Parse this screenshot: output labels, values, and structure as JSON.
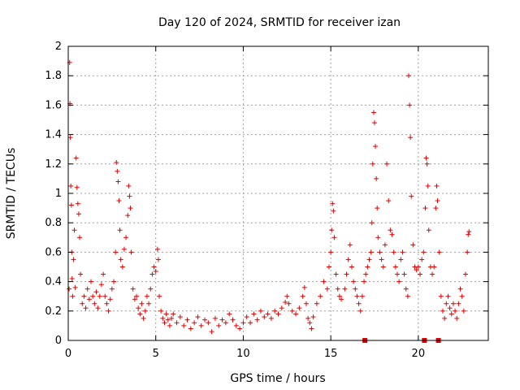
{
  "chart_data": {
    "type": "scatter",
    "title": "Day 120 of 2024, SRMTID for receiver izan",
    "xlabel": "GPS time / hours",
    "ylabel": "SRMTID / TECUs",
    "xlim": [
      0,
      24
    ],
    "ylim": [
      0,
      2
    ],
    "x_ticks": [
      0,
      5,
      10,
      15,
      20
    ],
    "y_ticks": [
      0,
      0.2,
      0.4,
      0.6,
      0.8,
      1,
      1.2,
      1.4,
      1.6,
      1.8,
      2
    ],
    "x_tick_labels": [
      "0",
      "5",
      "10",
      "15",
      "20"
    ],
    "y_tick_labels": [
      "0",
      "0.2",
      "0.4",
      "0.6",
      "0.8",
      "1",
      "1.2",
      "1.4",
      "1.6",
      "1.8",
      "2"
    ],
    "grid": true,
    "marker": "plus",
    "color": "#e00000",
    "series": [
      {
        "name": "SRMTID",
        "points": [
          [
            0.05,
            0.35
          ],
          [
            0.08,
            1.89
          ],
          [
            0.1,
            1.61
          ],
          [
            0.12,
            1.38
          ],
          [
            0.15,
            1.05
          ],
          [
            0.18,
            0.92
          ],
          [
            0.2,
            0.6
          ],
          [
            0.22,
            0.42
          ],
          [
            0.25,
            0.3
          ],
          [
            0.3,
            0.55
          ],
          [
            0.35,
            0.75
          ],
          [
            0.4,
            0.36
          ],
          [
            0.45,
            1.24
          ],
          [
            0.5,
            1.04
          ],
          [
            0.55,
            0.93
          ],
          [
            0.6,
            0.86
          ],
          [
            0.65,
            0.7
          ],
          [
            0.7,
            0.45
          ],
          [
            0.8,
            0.25
          ],
          [
            0.9,
            0.3
          ],
          [
            1.0,
            0.22
          ],
          [
            1.1,
            0.35
          ],
          [
            1.2,
            0.28
          ],
          [
            1.3,
            0.4
          ],
          [
            1.4,
            0.3
          ],
          [
            1.5,
            0.25
          ],
          [
            1.6,
            0.33
          ],
          [
            1.7,
            0.22
          ],
          [
            1.8,
            0.3
          ],
          [
            1.9,
            0.38
          ],
          [
            2.0,
            0.45
          ],
          [
            2.1,
            0.3
          ],
          [
            2.2,
            0.25
          ],
          [
            2.3,
            0.2
          ],
          [
            2.4,
            0.28
          ],
          [
            2.5,
            0.35
          ],
          [
            2.6,
            0.4
          ],
          [
            2.7,
            0.6
          ],
          [
            2.75,
            1.21
          ],
          [
            2.8,
            1.15
          ],
          [
            2.85,
            1.08
          ],
          [
            2.9,
            0.95
          ],
          [
            2.95,
            0.75
          ],
          [
            3.0,
            0.55
          ],
          [
            3.1,
            0.5
          ],
          [
            3.2,
            0.62
          ],
          [
            3.3,
            0.7
          ],
          [
            3.4,
            0.85
          ],
          [
            3.45,
            1.05
          ],
          [
            3.5,
            0.98
          ],
          [
            3.55,
            0.9
          ],
          [
            3.6,
            0.6
          ],
          [
            3.7,
            0.35
          ],
          [
            3.8,
            0.28
          ],
          [
            3.9,
            0.3
          ],
          [
            4.0,
            0.22
          ],
          [
            4.1,
            0.18
          ],
          [
            4.2,
            0.25
          ],
          [
            4.3,
            0.15
          ],
          [
            4.4,
            0.2
          ],
          [
            4.5,
            0.3
          ],
          [
            4.6,
            0.25
          ],
          [
            4.7,
            0.35
          ],
          [
            4.8,
            0.45
          ],
          [
            4.9,
            0.5
          ],
          [
            5.0,
            0.47
          ],
          [
            5.1,
            0.62
          ],
          [
            5.15,
            0.55
          ],
          [
            5.2,
            0.3
          ],
          [
            5.3,
            0.2
          ],
          [
            5.4,
            0.15
          ],
          [
            5.5,
            0.12
          ],
          [
            5.6,
            0.18
          ],
          [
            5.7,
            0.14
          ],
          [
            5.8,
            0.1
          ],
          [
            5.9,
            0.15
          ],
          [
            6.0,
            0.18
          ],
          [
            6.2,
            0.12
          ],
          [
            6.4,
            0.16
          ],
          [
            6.6,
            0.1
          ],
          [
            6.8,
            0.14
          ],
          [
            7.0,
            0.08
          ],
          [
            7.2,
            0.12
          ],
          [
            7.4,
            0.16
          ],
          [
            7.6,
            0.1
          ],
          [
            7.8,
            0.14
          ],
          [
            8.0,
            0.12
          ],
          [
            8.2,
            0.06
          ],
          [
            8.4,
            0.15
          ],
          [
            8.6,
            0.1
          ],
          [
            8.8,
            0.14
          ],
          [
            9.0,
            0.12
          ],
          [
            9.2,
            0.18
          ],
          [
            9.4,
            0.14
          ],
          [
            9.6,
            0.1
          ],
          [
            9.8,
            0.08
          ],
          [
            10.0,
            0.12
          ],
          [
            10.2,
            0.16
          ],
          [
            10.4,
            0.12
          ],
          [
            10.6,
            0.18
          ],
          [
            10.8,
            0.14
          ],
          [
            11.0,
            0.2
          ],
          [
            11.2,
            0.16
          ],
          [
            11.4,
            0.18
          ],
          [
            11.6,
            0.15
          ],
          [
            11.8,
            0.2
          ],
          [
            12.0,
            0.18
          ],
          [
            12.2,
            0.22
          ],
          [
            12.4,
            0.26
          ],
          [
            12.5,
            0.3
          ],
          [
            12.6,
            0.25
          ],
          [
            12.8,
            0.2
          ],
          [
            13.0,
            0.18
          ],
          [
            13.2,
            0.22
          ],
          [
            13.4,
            0.3
          ],
          [
            13.5,
            0.36
          ],
          [
            13.6,
            0.25
          ],
          [
            13.7,
            0.15
          ],
          [
            13.8,
            0.12
          ],
          [
            13.9,
            0.08
          ],
          [
            14.0,
            0.16
          ],
          [
            14.2,
            0.25
          ],
          [
            14.4,
            0.3
          ],
          [
            14.6,
            0.4
          ],
          [
            14.8,
            0.35
          ],
          [
            14.9,
            0.5
          ],
          [
            15.0,
            0.6
          ],
          [
            15.05,
            0.75
          ],
          [
            15.1,
            0.93
          ],
          [
            15.15,
            0.88
          ],
          [
            15.2,
            0.7
          ],
          [
            15.3,
            0.45
          ],
          [
            15.4,
            0.35
          ],
          [
            15.5,
            0.3
          ],
          [
            15.6,
            0.28
          ],
          [
            15.8,
            0.35
          ],
          [
            15.9,
            0.45
          ],
          [
            16.0,
            0.55
          ],
          [
            16.1,
            0.65
          ],
          [
            16.2,
            0.5
          ],
          [
            16.3,
            0.4
          ],
          [
            16.4,
            0.35
          ],
          [
            16.5,
            0.3
          ],
          [
            16.6,
            0.25
          ],
          [
            16.7,
            0.2
          ],
          [
            16.8,
            0.3
          ],
          [
            16.9,
            0.4
          ],
          [
            17.0,
            0.45
          ],
          [
            17.1,
            0.5
          ],
          [
            17.2,
            0.55
          ],
          [
            17.3,
            0.6
          ],
          [
            17.35,
            0.8
          ],
          [
            17.4,
            1.2
          ],
          [
            17.45,
            1.55
          ],
          [
            17.5,
            1.48
          ],
          [
            17.55,
            1.32
          ],
          [
            17.6,
            1.1
          ],
          [
            17.65,
            0.9
          ],
          [
            17.7,
            0.7
          ],
          [
            17.8,
            0.6
          ],
          [
            17.9,
            0.55
          ],
          [
            18.0,
            0.5
          ],
          [
            18.1,
            0.65
          ],
          [
            18.2,
            1.2
          ],
          [
            18.3,
            0.95
          ],
          [
            18.4,
            0.75
          ],
          [
            18.5,
            0.72
          ],
          [
            18.6,
            0.6
          ],
          [
            18.7,
            0.5
          ],
          [
            18.8,
            0.45
          ],
          [
            18.9,
            0.4
          ],
          [
            19.0,
            0.55
          ],
          [
            19.1,
            0.6
          ],
          [
            19.2,
            0.45
          ],
          [
            19.3,
            0.35
          ],
          [
            19.4,
            0.3
          ],
          [
            19.45,
            1.8
          ],
          [
            19.5,
            1.6
          ],
          [
            19.55,
            1.38
          ],
          [
            19.6,
            0.98
          ],
          [
            19.7,
            0.65
          ],
          [
            19.8,
            0.5
          ],
          [
            19.9,
            0.48
          ],
          [
            20.0,
            0.5
          ],
          [
            20.1,
            0.45
          ],
          [
            20.2,
            0.55
          ],
          [
            20.3,
            0.6
          ],
          [
            20.4,
            0.9
          ],
          [
            20.45,
            1.24
          ],
          [
            20.5,
            1.2
          ],
          [
            20.55,
            1.05
          ],
          [
            20.6,
            0.75
          ],
          [
            20.7,
            0.5
          ],
          [
            20.8,
            0.45
          ],
          [
            20.9,
            0.5
          ],
          [
            21.0,
            0.9
          ],
          [
            21.05,
            1.05
          ],
          [
            21.1,
            0.95
          ],
          [
            21.2,
            0.6
          ],
          [
            21.3,
            0.3
          ],
          [
            21.4,
            0.2
          ],
          [
            21.5,
            0.15
          ],
          [
            21.6,
            0.25
          ],
          [
            21.7,
            0.3
          ],
          [
            21.8,
            0.22
          ],
          [
            21.9,
            0.18
          ],
          [
            22.0,
            0.25
          ],
          [
            22.1,
            0.2
          ],
          [
            22.2,
            0.15
          ],
          [
            22.3,
            0.25
          ],
          [
            22.4,
            0.35
          ],
          [
            22.5,
            0.3
          ],
          [
            22.6,
            0.2
          ],
          [
            22.7,
            0.45
          ],
          [
            22.8,
            0.6
          ],
          [
            22.85,
            0.72
          ],
          [
            22.9,
            0.74
          ]
        ]
      }
    ],
    "zero_markers_x": [
      16.95,
      20.35,
      21.15
    ]
  }
}
